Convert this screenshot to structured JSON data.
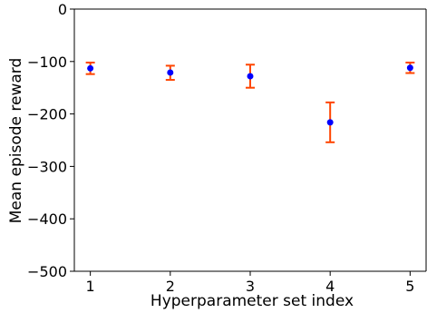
{
  "chart_data": {
    "type": "scatter",
    "title": "",
    "xlabel": "Hyperparameter set index",
    "ylabel": "Mean episode reward",
    "xlim": [
      0.8,
      5.2
    ],
    "ylim": [
      -500,
      0
    ],
    "x_ticks": [
      1,
      2,
      3,
      4,
      5
    ],
    "y_ticks": [
      0,
      -100,
      -200,
      -300,
      -400,
      -500
    ],
    "x_tick_labels": [
      "1",
      "2",
      "3",
      "4",
      "5"
    ],
    "y_tick_labels": [
      "0",
      "−100",
      "−200",
      "−300",
      "−400",
      "−500"
    ],
    "grid": false,
    "series": [
      {
        "x": [
          1,
          2,
          3,
          4,
          5
        ],
        "y": [
          -113,
          -121,
          -128,
          -216,
          -112
        ],
        "err_lower": [
          -124,
          -135,
          -150,
          -254,
          -122
        ],
        "err_upper": [
          -102,
          -108,
          -106,
          -178,
          -102
        ],
        "marker_color": "#0000ff",
        "errorbar_color": "#ff4500"
      }
    ]
  }
}
